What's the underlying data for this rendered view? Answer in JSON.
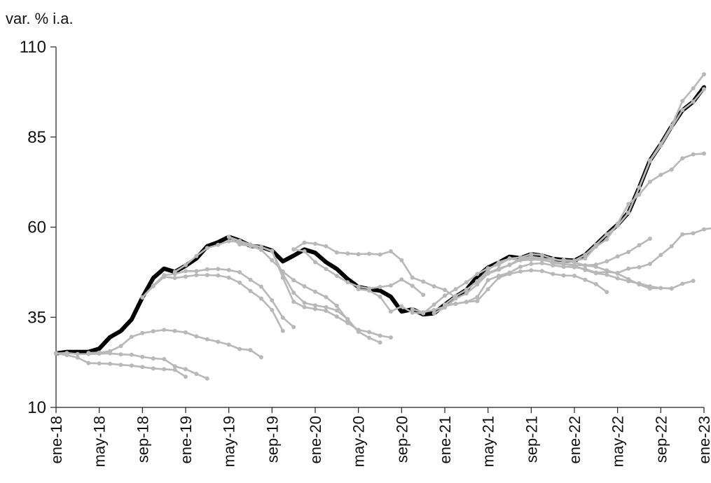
{
  "chart_data": {
    "type": "line",
    "ylabel": "var. % i.a.",
    "ylim": [
      10,
      110
    ],
    "yticks": [
      10,
      35,
      60,
      85,
      110
    ],
    "x_tick_labels": [
      "ene-18",
      "may-18",
      "sep-18",
      "ene-19",
      "may-19",
      "sep-19",
      "ene-20",
      "may-20",
      "sep-20",
      "ene-21",
      "may-21",
      "sep-21",
      "ene-22",
      "may-22",
      "sep-22",
      "ene-23"
    ],
    "x_start_month": "2018-01",
    "x_end_month": "2023-01",
    "grid": false,
    "legend": "none",
    "main_series": {
      "color": "#000000",
      "values": [
        25.0,
        25.4,
        25.4,
        25.4,
        26.3,
        29.5,
        31.2,
        34.4,
        40.5,
        45.9,
        48.5,
        47.6,
        49.3,
        51.3,
        54.7,
        55.8,
        57.3,
        56.3,
        54.8,
        54.5,
        53.5,
        50.5,
        52.1,
        53.8,
        52.9,
        50.3,
        48.4,
        45.6,
        43.4,
        42.8,
        42.4,
        40.7,
        36.6,
        37.2,
        35.8,
        36.1,
        38.5,
        40.7,
        42.6,
        46.3,
        48.8,
        50.2,
        51.8,
        51.4,
        52.5,
        52.1,
        51.2,
        50.9,
        50.7,
        52.3,
        55.1,
        58.0,
        60.7,
        64.0,
        71.0,
        78.5,
        83.0,
        88.0,
        92.4,
        94.8,
        98.8
      ]
    },
    "expectation_series_color": "#b8b8b8",
    "expectation_series": [
      {
        "start_month": "2018-01",
        "values": [
          25.0,
          24.5,
          23.8,
          22.3,
          22.2,
          22.1,
          21.8,
          21.6,
          21.2,
          20.8,
          20.6,
          20.4,
          18.5
        ]
      },
      {
        "start_month": "2018-01",
        "values": [
          25.0,
          25.1,
          24.8,
          24.8,
          24.9,
          25.0,
          24.7,
          24.6,
          24.0,
          23.6,
          23.4,
          21.4,
          20.6,
          19.3,
          18.0
        ]
      },
      {
        "start_month": "2018-04",
        "values": [
          25.1,
          25.2,
          25.6,
          27.0,
          29.6,
          30.6,
          31.1,
          31.5,
          31.2,
          30.8,
          29.7,
          28.9,
          28.2,
          27.4,
          26.2,
          25.9,
          23.9
        ]
      },
      {
        "start_month": "2018-09",
        "values": [
          40.5,
          43.6,
          46.2,
          45.9,
          46.3,
          46.7,
          46.7,
          46.6,
          46.0,
          44.6,
          42.3,
          40.2,
          37.0,
          31.2
        ]
      },
      {
        "start_month": "2018-09",
        "values": [
          40.5,
          43.8,
          46.7,
          47.0,
          47.8,
          47.8,
          48.3,
          48.4,
          48.1,
          47.5,
          45.4,
          43.5,
          39.7,
          34.9,
          32.3
        ]
      },
      {
        "start_month": "2018-12",
        "values": [
          47.6,
          49.5,
          52.0,
          54.2,
          55.1,
          56.1,
          55.9,
          54.8,
          53.7,
          50.8,
          47.7,
          45.3,
          43.6,
          42.1,
          40.6,
          38.2,
          34.2,
          31.0,
          29.3,
          28.0
        ]
      },
      {
        "start_month": "2019-05",
        "values": [
          57.3,
          55.2,
          54.8,
          54.5,
          53.3,
          47.0,
          41.8,
          39.0,
          38.3,
          37.8,
          36.9,
          34.5,
          31.0
        ]
      },
      {
        "start_month": "2019-05",
        "values": [
          57.3,
          56.2,
          55.2,
          54.5,
          53.4,
          46.0,
          39.3,
          37.8,
          37.3,
          36.8,
          35.2,
          33.4,
          31.5,
          30.9,
          29.9,
          29.4
        ]
      },
      {
        "start_month": "2019-11",
        "values": [
          53.8,
          53.3,
          50.3,
          48.4,
          46.5,
          44.7,
          43.5,
          43.0,
          43.4,
          43.8,
          45.5,
          43.7,
          41.2
        ]
      },
      {
        "start_month": "2019-11",
        "values": [
          53.8,
          55.7,
          55.4,
          54.7,
          53.0,
          52.7,
          52.5,
          52.6,
          52.4,
          53.3,
          50.8,
          46.0,
          44.9,
          43.6,
          42.6,
          40.5
        ]
      },
      {
        "start_month": "2020-05",
        "values": [
          42.8,
          42.4,
          40.7,
          36.6,
          38.0,
          36.3,
          36.1,
          38.5,
          41.0,
          42.8,
          44.7,
          47.0,
          48.6,
          49.6,
          51.3,
          50.8,
          51.0,
          50.9,
          50.3,
          50.0,
          49.5,
          49.4,
          49.6,
          50.5,
          51.9,
          53.1,
          55.0,
          56.8
        ]
      },
      {
        "start_month": "2020-10",
        "values": [
          37.2,
          36.4,
          37.0,
          38.0,
          38.8,
          39.2,
          40.6,
          45.3,
          46.5,
          47.4,
          49.0,
          49.8,
          50.0,
          49.4,
          49.0,
          48.9,
          48.4,
          47.4,
          47.6,
          47.3,
          48.5,
          48.9,
          49.8,
          52.3,
          54.7,
          58.0,
          58.3,
          59.4,
          59.8,
          59.2
        ]
      },
      {
        "start_month": "2020-12",
        "values": [
          36.1,
          37.7,
          40.2,
          41.6,
          44.1,
          47.1,
          48.2,
          49.6,
          51.2,
          51.8,
          51.4,
          50.0,
          49.7,
          49.3,
          48.1,
          47.2,
          46.8,
          45.8,
          45.0,
          44.4,
          43.6,
          43.1,
          43.0,
          44.3,
          45.1
        ]
      },
      {
        "start_month": "2021-01",
        "values": [
          38.5,
          40.9,
          42.6,
          45.0,
          47.3,
          48.5,
          49.5,
          50.9,
          51.4,
          51.3,
          51.0,
          50.8,
          50.3,
          49.4,
          49.0,
          48.0,
          47.1,
          45.6,
          44.1,
          43.0,
          43.1,
          43.0
        ]
      },
      {
        "start_month": "2021-01",
        "values": [
          38.5,
          38.7,
          39.3,
          39.5,
          42.8,
          46.0,
          47.0,
          47.7,
          48.0,
          47.8,
          47.0,
          46.6,
          46.5,
          45.4,
          44.2,
          42.0
        ]
      },
      {
        "start_month": "2021-03",
        "values": [
          42.6,
          45.0,
          48.1,
          50.3,
          51.3,
          51.6,
          52.5,
          52.3,
          51.2,
          50.6,
          50.7,
          51.3,
          54.6,
          56.6,
          61.0,
          66.4,
          69.0,
          72.6,
          74.5,
          76.0,
          79.1,
          80.2,
          80.4
        ]
      },
      {
        "start_month": "2021-12",
        "values": [
          50.9,
          50.7,
          52.3,
          55.1,
          58.0,
          60.4,
          64.0,
          71.0,
          78.5,
          83.1,
          88.1,
          95.0,
          98.5,
          102.4
        ]
      },
      {
        "start_month": "2021-12",
        "values": [
          50.9,
          50.7,
          52.3,
          55.1,
          58.0,
          60.4,
          64.0,
          71.0,
          78.3,
          82.6,
          87.6,
          92.5,
          94.8,
          98.3
        ]
      }
    ]
  }
}
